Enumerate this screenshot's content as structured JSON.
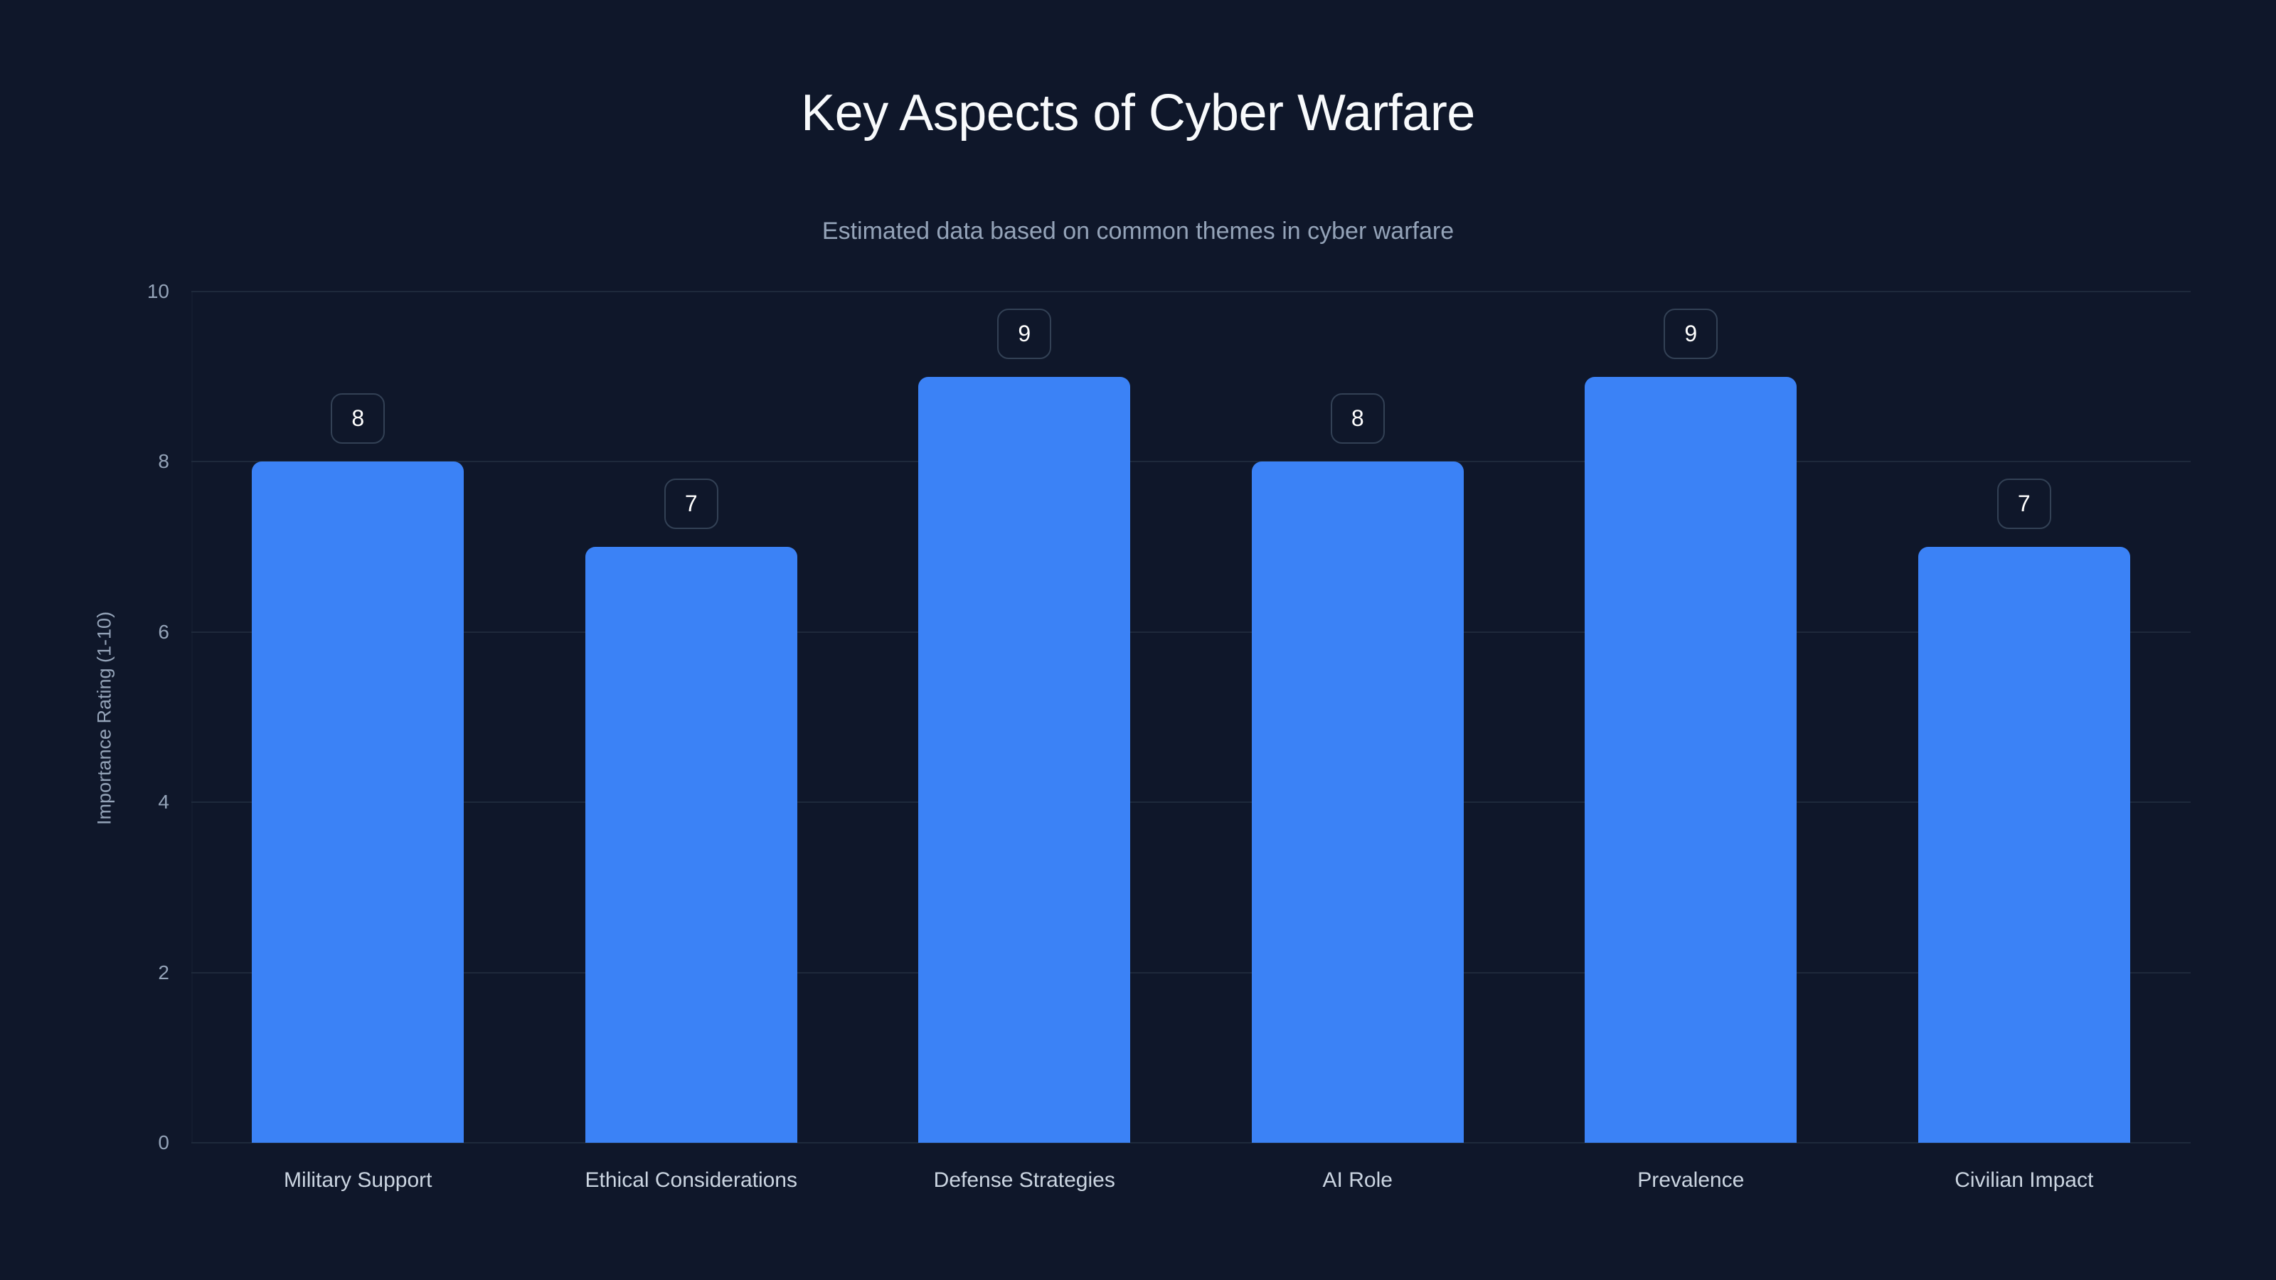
{
  "chart_data": {
    "type": "bar",
    "title": "Key Aspects of Cyber Warfare",
    "subtitle": "Estimated data based on common themes in cyber warfare",
    "xlabel": "",
    "ylabel": "Importance Rating (1-10)",
    "ylim": [
      0,
      10
    ],
    "yticks": [
      "0",
      "2",
      "4",
      "6",
      "8",
      "10"
    ],
    "grid": true,
    "legend": null,
    "categories": [
      "Military Support",
      "Ethical Considerations",
      "Defense Strategies",
      "AI Role",
      "Prevalence",
      "Civilian Impact"
    ],
    "values": [
      8,
      7,
      9,
      8,
      9,
      7
    ],
    "data_labels": [
      "8",
      "7",
      "9",
      "8",
      "9",
      "7"
    ],
    "colors": {
      "background": "#0f172a",
      "bar": "#3b82f6",
      "grid": "#1e293b",
      "tick_text": "#94a3b8",
      "category_text": "#cbd5e1",
      "title_text": "#f8fafc",
      "badge_border": "#334155"
    }
  }
}
